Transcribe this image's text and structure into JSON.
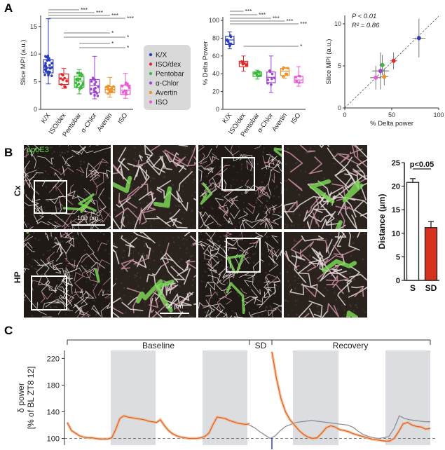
{
  "panels": {
    "A": "A",
    "B": "B",
    "C": "C"
  },
  "panelA": {
    "box1": {
      "ylabel": "Slice MPI (a.u.)",
      "yticks": [
        0,
        5,
        10,
        15
      ],
      "ylim": [
        0,
        17
      ],
      "categories": [
        "K/X",
        "ISO/dex",
        "Pentobar",
        "α-Chlor",
        "Avertin",
        "ISO"
      ],
      "colors": [
        "#2d3db8",
        "#e02a2a",
        "#3cb83c",
        "#a044d0",
        "#f0922a",
        "#e85ad8"
      ],
      "boxes": [
        {
          "min": 4.6,
          "q1": 6.6,
          "median": 7.6,
          "q3": 9.0,
          "max": 16.4
        },
        {
          "min": 3.8,
          "q1": 4.5,
          "median": 5.5,
          "q3": 6.4,
          "max": 7.4
        },
        {
          "min": 2.8,
          "q1": 4.0,
          "median": 5.1,
          "q3": 6.0,
          "max": 7.2
        },
        {
          "min": 1.9,
          "q1": 3.0,
          "median": 4.3,
          "q3": 5.4,
          "max": 9.6
        },
        {
          "min": 2.2,
          "q1": 3.0,
          "median": 3.6,
          "q3": 4.1,
          "max": 5.8
        },
        {
          "min": 2.0,
          "q1": 2.7,
          "median": 3.5,
          "q3": 4.4,
          "max": 6.5
        }
      ],
      "sig": [
        "***",
        "***",
        "***",
        "***",
        "*",
        "*",
        "*",
        "*"
      ]
    },
    "legend": [
      "K/X",
      "ISO/dex",
      "Pentobar",
      "α-Chlor",
      "Avertin",
      "ISO"
    ],
    "box2": {
      "ylabel": "% Delta Power",
      "yticks": [
        0,
        20,
        40,
        60,
        80,
        100
      ],
      "ylim": [
        0,
        104
      ],
      "categories": [
        "K/X",
        "ISO/dex",
        "Pentobar",
        "α-Chlor",
        "Avertin",
        "ISO"
      ],
      "boxes": [
        {
          "min": 68,
          "q1": 73,
          "median": 78,
          "q3": 82,
          "max": 87
        },
        {
          "min": 43,
          "q1": 48,
          "median": 52,
          "q3": 54,
          "max": 60
        },
        {
          "min": 34,
          "q1": 37,
          "median": 40,
          "q3": 42,
          "max": 44
        },
        {
          "min": 19,
          "q1": 30,
          "median": 36,
          "q3": 42,
          "max": 60
        },
        {
          "min": 35,
          "q1": 38,
          "median": 43,
          "q3": 46,
          "max": 47
        },
        {
          "min": 26,
          "q1": 30,
          "median": 33,
          "q3": 37,
          "max": 48
        }
      ],
      "sig": [
        "***",
        "***",
        "***",
        "***",
        "***",
        "*"
      ]
    },
    "scatter": {
      "xlabel": "% Delta power",
      "ylabel": "Slice MPI (a.u.)",
      "xticks": [
        0,
        50,
        100
      ],
      "yticks": [
        0,
        5,
        10
      ],
      "xlim": [
        0,
        100
      ],
      "ylim": [
        0,
        11
      ],
      "pvalue": "P < 0.01",
      "r2": "R² = 0.86",
      "points": [
        {
          "x": 79,
          "y": 8.3,
          "xerr": 7,
          "yerr": 2.3
        },
        {
          "x": 52,
          "y": 5.6,
          "xerr": 4,
          "yerr": 1.0
        },
        {
          "x": 40,
          "y": 5.1,
          "xerr": 3,
          "yerr": 1.2
        },
        {
          "x": 38,
          "y": 4.4,
          "xerr": 9,
          "yerr": 2.2
        },
        {
          "x": 42,
          "y": 3.7,
          "xerr": 4,
          "yerr": 1.0
        },
        {
          "x": 33,
          "y": 3.6,
          "xerr": 6,
          "yerr": 1.4
        }
      ]
    }
  },
  "panelB": {
    "stain": "apoE3",
    "rows": [
      "Cx",
      "HP"
    ],
    "scale1": "100 µm",
    "scale2": "50 µm",
    "bar": {
      "ylabel": "Distance (µm)",
      "yticks": [
        0,
        5,
        10,
        15,
        20,
        25
      ],
      "ylim": [
        0,
        25
      ],
      "categories": [
        "S",
        "SD"
      ],
      "values": [
        20.8,
        11.2
      ],
      "errors": [
        0.8,
        1.3
      ],
      "colors": [
        "#ffffff",
        "#d6321e"
      ],
      "sig": "p<0.05"
    }
  },
  "panelC": {
    "ylabel1": "δ power",
    "ylabel2": "[% of BL ZT8 12]",
    "yticks": [
      100,
      140,
      180,
      220
    ],
    "ylim": [
      90,
      232
    ],
    "labels": {
      "baseline": "Baseline",
      "sd": "SD",
      "recovery": "Recovery"
    },
    "series": [
      {
        "name": "",
        "values": [
          124,
          112,
          108,
          104,
          102,
          101,
          101,
          100,
          99,
          99,
          99,
          101,
          114,
          130,
          134,
          132,
          131,
          130,
          129,
          128,
          126,
          125,
          124,
          128,
          119,
          112,
          107,
          104,
          102,
          101,
          100,
          100,
          100,
          101,
          103,
          108,
          121,
          132,
          131,
          130,
          127,
          125,
          123,
          122,
          121,
          122
        ]
      },
      {
        "name": "",
        "values": [
          230,
          190,
          160,
          140,
          128,
          120,
          112,
          106,
          102,
          100,
          101,
          108,
          116,
          119,
          117,
          113,
          112,
          110,
          107,
          105,
          103,
          101,
          99,
          98,
          97,
          96,
          96,
          100,
          110,
          122,
          124,
          120,
          118,
          117,
          114,
          115
        ]
      },
      {
        "name": "",
        "values": [
          120,
          116,
          110,
          105,
          100,
          104,
          112,
          118,
          121,
          124,
          125,
          126,
          127,
          126,
          125,
          124,
          123,
          122,
          121,
          120,
          117,
          111,
          106,
          103,
          101,
          100,
          101,
          103,
          115,
          134,
          130,
          128,
          127,
          126,
          125,
          125
        ]
      }
    ]
  }
}
